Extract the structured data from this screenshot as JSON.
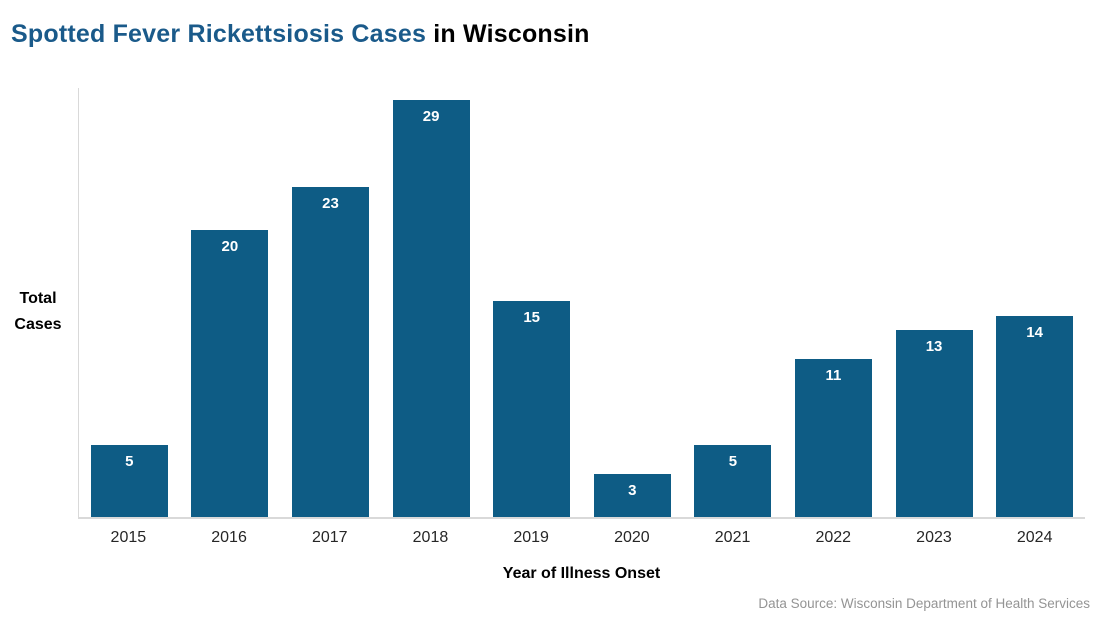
{
  "title": {
    "highlight": "Spotted Fever Rickettsiosis Cases",
    "rest": " in Wisconsin"
  },
  "y_axis": {
    "line1": "Total",
    "line2": "Cases"
  },
  "x_axis_label": "Year of Illness Onset",
  "source": "Data Source: Wisconsin Department of Health Services",
  "colors": {
    "bar": "#0e5c85",
    "title_accent": "#1a5a8a",
    "axis_line": "#d9d9d9",
    "source_text": "#949494",
    "tick_text": "#262626",
    "bar_label_text": "#ffffff"
  },
  "chart_data": {
    "type": "bar",
    "title": "Spotted Fever Rickettsiosis Cases in Wisconsin",
    "categories": [
      "2015",
      "2016",
      "2017",
      "2018",
      "2019",
      "2020",
      "2021",
      "2022",
      "2023",
      "2024"
    ],
    "values": [
      5,
      20,
      23,
      29,
      15,
      3,
      5,
      11,
      13,
      14
    ],
    "xlabel": "Year of Illness Onset",
    "ylabel": "Total Cases",
    "ylim": [
      0,
      30
    ],
    "grid": false,
    "legend": false,
    "bar_value_labels_inside_top": true
  }
}
